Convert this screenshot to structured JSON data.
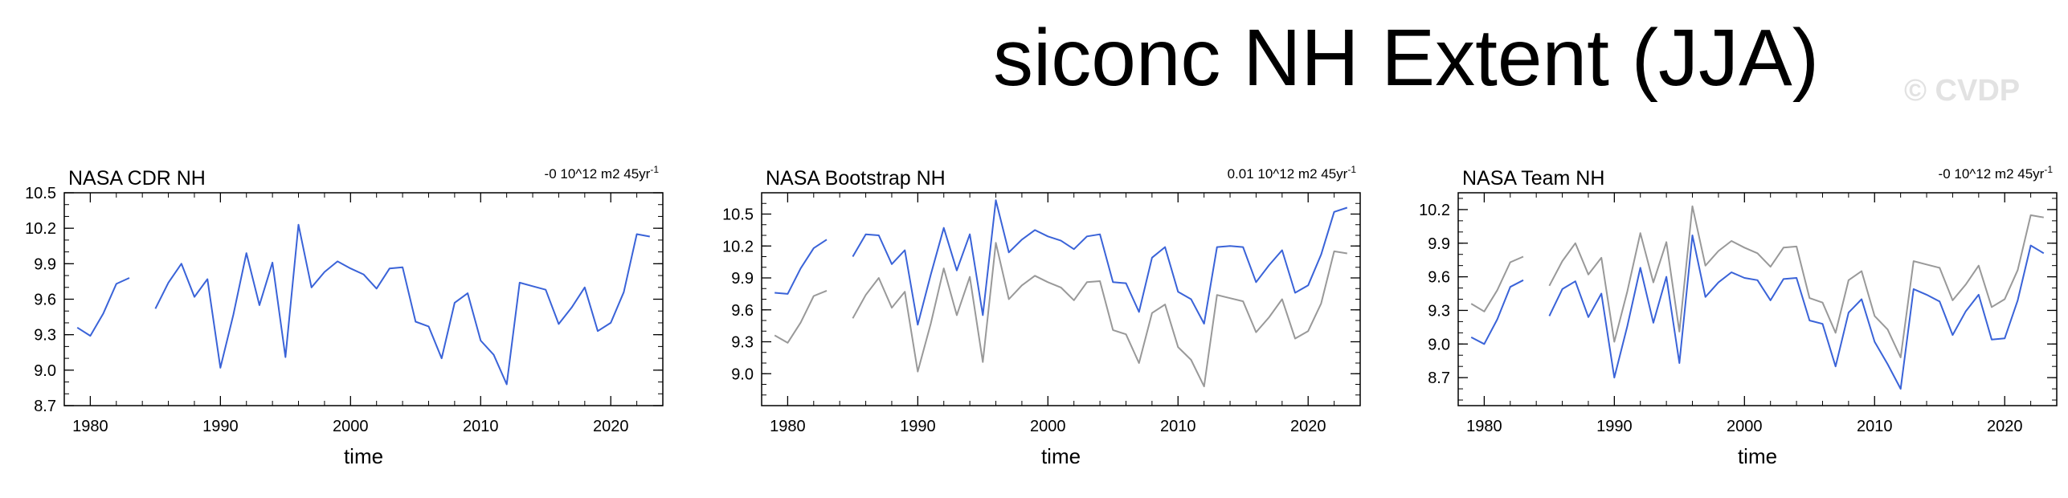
{
  "title": "siconc NH Extent (JJA)",
  "watermark": "© CVDP",
  "colors": {
    "primary": "#3a63d8",
    "reference": "#999999",
    "axis": "#000000"
  },
  "chart_data": [
    {
      "type": "line",
      "panel_title": "NASA CDR NH",
      "trend_label": "-0 10^12 m2 45yr",
      "trend_sup": "-1",
      "xlabel": "time",
      "ylabel": "",
      "xlim": [
        1978,
        2024
      ],
      "ylim": [
        8.7,
        10.5
      ],
      "xticks": [
        "1980",
        "1990",
        "2000",
        "2010",
        "2020"
      ],
      "yticks": [
        "8.7",
        "9.0",
        "9.3",
        "9.6",
        "9.9",
        "10.2",
        "10.5"
      ],
      "series": [
        {
          "role": "primary",
          "x": [
            1979,
            1980,
            1981,
            1982,
            1983,
            1984,
            1985,
            1986,
            1987,
            1988,
            1989,
            1990,
            1991,
            1992,
            1993,
            1994,
            1995,
            1996,
            1997,
            1998,
            1999,
            2000,
            2001,
            2002,
            2003,
            2004,
            2005,
            2006,
            2007,
            2008,
            2009,
            2010,
            2011,
            2012,
            2013,
            2014,
            2015,
            2016,
            2017,
            2018,
            2019,
            2020,
            2021,
            2022,
            2023
          ],
          "values": [
            9.36,
            9.29,
            9.48,
            9.73,
            9.78,
            null,
            9.52,
            9.74,
            9.9,
            9.62,
            9.77,
            9.02,
            9.47,
            9.99,
            9.55,
            9.91,
            9.11,
            10.23,
            9.7,
            9.83,
            9.92,
            9.86,
            9.81,
            9.69,
            9.86,
            9.87,
            9.41,
            9.37,
            9.1,
            9.57,
            9.65,
            9.25,
            9.13,
            8.88,
            9.74,
            9.71,
            9.68,
            9.39,
            9.53,
            9.7,
            9.33,
            9.4,
            9.66,
            10.15,
            10.13
          ]
        }
      ]
    },
    {
      "type": "line",
      "panel_title": "NASA Bootstrap NH",
      "trend_label": "0.01 10^12 m2 45yr",
      "trend_sup": "-1",
      "xlabel": "time",
      "ylabel": "",
      "xlim": [
        1978,
        2024
      ],
      "ylim": [
        8.7,
        10.7
      ],
      "xticks": [
        "1980",
        "1990",
        "2000",
        "2010",
        "2020"
      ],
      "yticks": [
        "9.0",
        "9.3",
        "9.6",
        "9.9",
        "10.2",
        "10.5"
      ],
      "series": [
        {
          "role": "reference",
          "x": [
            1979,
            1980,
            1981,
            1982,
            1983,
            1984,
            1985,
            1986,
            1987,
            1988,
            1989,
            1990,
            1991,
            1992,
            1993,
            1994,
            1995,
            1996,
            1997,
            1998,
            1999,
            2000,
            2001,
            2002,
            2003,
            2004,
            2005,
            2006,
            2007,
            2008,
            2009,
            2010,
            2011,
            2012,
            2013,
            2014,
            2015,
            2016,
            2017,
            2018,
            2019,
            2020,
            2021,
            2022,
            2023
          ],
          "values": [
            9.36,
            9.29,
            9.48,
            9.73,
            9.78,
            null,
            9.52,
            9.74,
            9.9,
            9.62,
            9.77,
            9.02,
            9.47,
            9.99,
            9.55,
            9.91,
            9.11,
            10.23,
            9.7,
            9.83,
            9.92,
            9.86,
            9.81,
            9.69,
            9.86,
            9.87,
            9.41,
            9.37,
            9.1,
            9.57,
            9.65,
            9.25,
            9.13,
            8.88,
            9.74,
            9.71,
            9.68,
            9.39,
            9.53,
            9.7,
            9.33,
            9.4,
            9.66,
            10.15,
            10.13
          ]
        },
        {
          "role": "primary",
          "x": [
            1979,
            1980,
            1981,
            1982,
            1983,
            1984,
            1985,
            1986,
            1987,
            1988,
            1989,
            1990,
            1991,
            1992,
            1993,
            1994,
            1995,
            1996,
            1997,
            1998,
            1999,
            2000,
            2001,
            2002,
            2003,
            2004,
            2005,
            2006,
            2007,
            2008,
            2009,
            2010,
            2011,
            2012,
            2013,
            2014,
            2015,
            2016,
            2017,
            2018,
            2019,
            2020,
            2021,
            2022,
            2023
          ],
          "values": [
            9.76,
            9.75,
            9.99,
            10.18,
            10.26,
            null,
            10.1,
            10.31,
            10.3,
            10.03,
            10.16,
            9.46,
            9.93,
            10.37,
            9.97,
            10.31,
            9.55,
            10.63,
            10.14,
            10.26,
            10.35,
            10.29,
            10.25,
            10.17,
            10.29,
            10.31,
            9.86,
            9.85,
            9.58,
            10.09,
            10.19,
            9.77,
            9.7,
            9.47,
            10.19,
            10.2,
            10.19,
            9.86,
            10.02,
            10.16,
            9.76,
            9.83,
            10.12,
            10.52,
            10.56
          ]
        }
      ]
    },
    {
      "type": "line",
      "panel_title": "NASA Team NH",
      "trend_label": "-0 10^12 m2 45yr",
      "trend_sup": "-1",
      "xlabel": "time",
      "ylabel": "",
      "xlim": [
        1978,
        2024
      ],
      "ylim": [
        8.45,
        10.35
      ],
      "xticks": [
        "1980",
        "1990",
        "2000",
        "2010",
        "2020"
      ],
      "yticks": [
        "8.7",
        "9.0",
        "9.3",
        "9.6",
        "9.9",
        "10.2"
      ],
      "series": [
        {
          "role": "reference",
          "x": [
            1979,
            1980,
            1981,
            1982,
            1983,
            1984,
            1985,
            1986,
            1987,
            1988,
            1989,
            1990,
            1991,
            1992,
            1993,
            1994,
            1995,
            1996,
            1997,
            1998,
            1999,
            2000,
            2001,
            2002,
            2003,
            2004,
            2005,
            2006,
            2007,
            2008,
            2009,
            2010,
            2011,
            2012,
            2013,
            2014,
            2015,
            2016,
            2017,
            2018,
            2019,
            2020,
            2021,
            2022,
            2023
          ],
          "values": [
            9.36,
            9.29,
            9.48,
            9.73,
            9.78,
            null,
            9.52,
            9.74,
            9.9,
            9.62,
            9.77,
            9.02,
            9.47,
            9.99,
            9.55,
            9.91,
            9.11,
            10.23,
            9.7,
            9.83,
            9.92,
            9.86,
            9.81,
            9.69,
            9.86,
            9.87,
            9.41,
            9.37,
            9.1,
            9.57,
            9.65,
            9.25,
            9.13,
            8.88,
            9.74,
            9.71,
            9.68,
            9.39,
            9.53,
            9.7,
            9.33,
            9.4,
            9.66,
            10.15,
            10.13
          ]
        },
        {
          "role": "primary",
          "x": [
            1979,
            1980,
            1981,
            1982,
            1983,
            1984,
            1985,
            1986,
            1987,
            1988,
            1989,
            1990,
            1991,
            1992,
            1993,
            1994,
            1995,
            1996,
            1997,
            1998,
            1999,
            2000,
            2001,
            2002,
            2003,
            2004,
            2005,
            2006,
            2007,
            2008,
            2009,
            2010,
            2011,
            2012,
            2013,
            2014,
            2015,
            2016,
            2017,
            2018,
            2019,
            2020,
            2021,
            2022,
            2023
          ],
          "values": [
            9.06,
            9.0,
            9.22,
            9.51,
            9.57,
            null,
            9.25,
            9.49,
            9.56,
            9.24,
            9.45,
            8.7,
            9.16,
            9.68,
            9.19,
            9.6,
            8.83,
            9.97,
            9.42,
            9.55,
            9.64,
            9.59,
            9.57,
            9.39,
            9.58,
            9.59,
            9.21,
            9.18,
            8.8,
            9.28,
            9.4,
            9.02,
            8.82,
            8.6,
            9.49,
            9.44,
            9.38,
            9.08,
            9.29,
            9.44,
            9.04,
            9.05,
            9.39,
            9.88,
            9.81
          ]
        }
      ]
    }
  ]
}
